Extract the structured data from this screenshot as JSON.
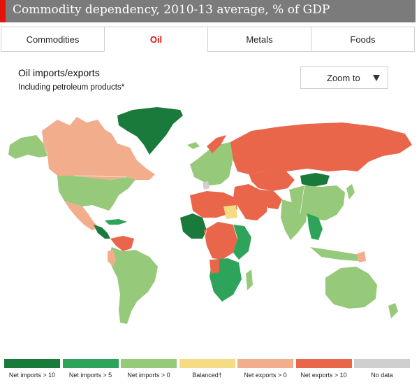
{
  "header": {
    "title": "Commodity dependency, 2010-13 average, % of GDP",
    "accent_color": "#e3120b"
  },
  "tabs": [
    {
      "label": "Commodities",
      "active": false
    },
    {
      "label": "Oil",
      "active": true
    },
    {
      "label": "Metals",
      "active": false
    },
    {
      "label": "Foods",
      "active": false
    }
  ],
  "chart": {
    "subtitle": "Oil imports/exports",
    "note": "Including petroleum products*"
  },
  "zoom": {
    "label": "Zoom to",
    "icon": "triangle-down-icon"
  },
  "legend": [
    {
      "label": "Net imports > 10",
      "color": "#1a7a3c"
    },
    {
      "label": "Net imports > 5",
      "color": "#2ea35a"
    },
    {
      "label": "Net imports > 0",
      "color": "#96c97a"
    },
    {
      "label": "Balanced†",
      "color": "#f5dc84"
    },
    {
      "label": "Net exports > 0",
      "color": "#f2ae8c"
    },
    {
      "label": "Net exports > 10",
      "color": "#e9664b"
    },
    {
      "label": "No data",
      "color": "#cfcfcf"
    }
  ]
}
